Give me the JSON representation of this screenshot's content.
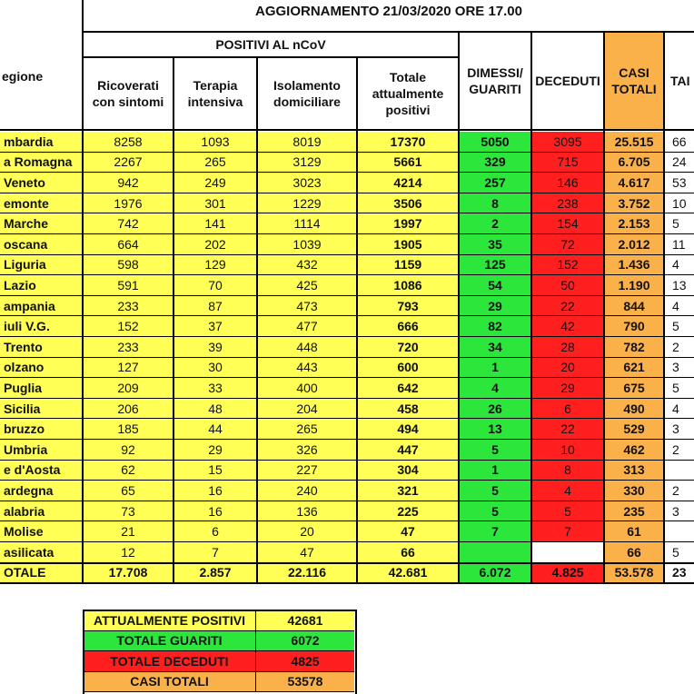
{
  "title": "AGGIORNAMENTO 21/03/2020 ORE 17.00",
  "headers": {
    "regione": "egione",
    "positivi_group": "POSITIVI AL nCoV",
    "ricoverati": "Ricoverati con sintomi",
    "terapia": "Terapia intensiva",
    "isolamento": "Isolamento domiciliare",
    "totale_positivi": "Totale attualmente positivi",
    "dimessi": "DIMESSI/ GUARITI",
    "deceduti": "DECEDUTI",
    "casi": "CASI TOTALI",
    "tamponi": "TAI"
  },
  "rows": [
    {
      "region": "mbardia",
      "ricoverati": "8258",
      "terapia": "1093",
      "isolamento": "8019",
      "totale": "17370",
      "dimessi": "5050",
      "deceduti": "3095",
      "casi": "25.515",
      "tamponi": "66"
    },
    {
      "region": "a Romagna",
      "ricoverati": "2267",
      "terapia": "265",
      "isolamento": "3129",
      "totale": "5661",
      "dimessi": "329",
      "deceduti": "715",
      "casi": "6.705",
      "tamponi": "24"
    },
    {
      "region": "Veneto",
      "ricoverati": "942",
      "terapia": "249",
      "isolamento": "3023",
      "totale": "4214",
      "dimessi": "257",
      "deceduti": "146",
      "casi": "4.617",
      "tamponi": "53"
    },
    {
      "region": "emonte",
      "ricoverati": "1976",
      "terapia": "301",
      "isolamento": "1229",
      "totale": "3506",
      "dimessi": "8",
      "deceduti": "238",
      "casi": "3.752",
      "tamponi": "10"
    },
    {
      "region": "Marche",
      "ricoverati": "742",
      "terapia": "141",
      "isolamento": "1114",
      "totale": "1997",
      "dimessi": "2",
      "deceduti": "154",
      "casi": "2.153",
      "tamponi": "5"
    },
    {
      "region": "oscana",
      "ricoverati": "664",
      "terapia": "202",
      "isolamento": "1039",
      "totale": "1905",
      "dimessi": "35",
      "deceduti": "72",
      "casi": "2.012",
      "tamponi": "11"
    },
    {
      "region": "Liguria",
      "ricoverati": "598",
      "terapia": "129",
      "isolamento": "432",
      "totale": "1159",
      "dimessi": "125",
      "deceduti": "152",
      "casi": "1.436",
      "tamponi": "4"
    },
    {
      "region": "Lazio",
      "ricoverati": "591",
      "terapia": "70",
      "isolamento": "425",
      "totale": "1086",
      "dimessi": "54",
      "deceduti": "50",
      "casi": "1.190",
      "tamponi": "13"
    },
    {
      "region": "ampania",
      "ricoverati": "233",
      "terapia": "87",
      "isolamento": "473",
      "totale": "793",
      "dimessi": "29",
      "deceduti": "22",
      "casi": "844",
      "tamponi": "4"
    },
    {
      "region": "iuli V.G.",
      "ricoverati": "152",
      "terapia": "37",
      "isolamento": "477",
      "totale": "666",
      "dimessi": "82",
      "deceduti": "42",
      "casi": "790",
      "tamponi": "5"
    },
    {
      "region": "Trento",
      "ricoverati": "233",
      "terapia": "39",
      "isolamento": "448",
      "totale": "720",
      "dimessi": "34",
      "deceduti": "28",
      "casi": "782",
      "tamponi": "2"
    },
    {
      "region": "olzano",
      "ricoverati": "127",
      "terapia": "30",
      "isolamento": "443",
      "totale": "600",
      "dimessi": "1",
      "deceduti": "20",
      "casi": "621",
      "tamponi": "3"
    },
    {
      "region": "Puglia",
      "ricoverati": "209",
      "terapia": "33",
      "isolamento": "400",
      "totale": "642",
      "dimessi": "4",
      "deceduti": "29",
      "casi": "675",
      "tamponi": "5"
    },
    {
      "region": "Sicilia",
      "ricoverati": "206",
      "terapia": "48",
      "isolamento": "204",
      "totale": "458",
      "dimessi": "26",
      "deceduti": "6",
      "casi": "490",
      "tamponi": "4"
    },
    {
      "region": "bruzzo",
      "ricoverati": "185",
      "terapia": "44",
      "isolamento": "265",
      "totale": "494",
      "dimessi": "13",
      "deceduti": "22",
      "casi": "529",
      "tamponi": "3"
    },
    {
      "region": "Umbria",
      "ricoverati": "92",
      "terapia": "29",
      "isolamento": "326",
      "totale": "447",
      "dimessi": "5",
      "deceduti": "10",
      "casi": "462",
      "tamponi": "2"
    },
    {
      "region": "e d'Aosta",
      "ricoverati": "62",
      "terapia": "15",
      "isolamento": "227",
      "totale": "304",
      "dimessi": "1",
      "deceduti": "8",
      "casi": "313",
      "tamponi": ""
    },
    {
      "region": "ardegna",
      "ricoverati": "65",
      "terapia": "16",
      "isolamento": "240",
      "totale": "321",
      "dimessi": "5",
      "deceduti": "4",
      "casi": "330",
      "tamponi": "2"
    },
    {
      "region": "alabria",
      "ricoverati": "73",
      "terapia": "16",
      "isolamento": "136",
      "totale": "225",
      "dimessi": "5",
      "deceduti": "5",
      "casi": "235",
      "tamponi": "3"
    },
    {
      "region": "Molise",
      "ricoverati": "21",
      "terapia": "6",
      "isolamento": "20",
      "totale": "47",
      "dimessi": "7",
      "deceduti": "7",
      "casi": "61",
      "tamponi": ""
    },
    {
      "region": "asilicata",
      "ricoverati": "12",
      "terapia": "7",
      "isolamento": "47",
      "totale": "66",
      "dimessi": "",
      "deceduti": "",
      "casi": "66",
      "tamponi": "5"
    }
  ],
  "totals": {
    "region": "OTALE",
    "ricoverati": "17.708",
    "terapia": "2.857",
    "isolamento": "22.116",
    "totale": "42.681",
    "dimessi": "6.072",
    "deceduti": "4.825",
    "casi": "53.578",
    "tamponi": "23"
  },
  "summary": [
    {
      "label": "ATTUALMENTE POSITIVI",
      "value": "42681",
      "color": "yellow"
    },
    {
      "label": "TOTALE GUARITI",
      "value": "6072",
      "color": "green"
    },
    {
      "label": "TOTALE DECEDUTI",
      "value": "4825",
      "color": "red"
    },
    {
      "label": "CASI TOTALI",
      "value": "53578",
      "color": "orange"
    }
  ],
  "colors": {
    "yellow": "#ffff55",
    "green": "#2de63b",
    "red": "#ff1f1f",
    "orange": "#fbb14a"
  }
}
